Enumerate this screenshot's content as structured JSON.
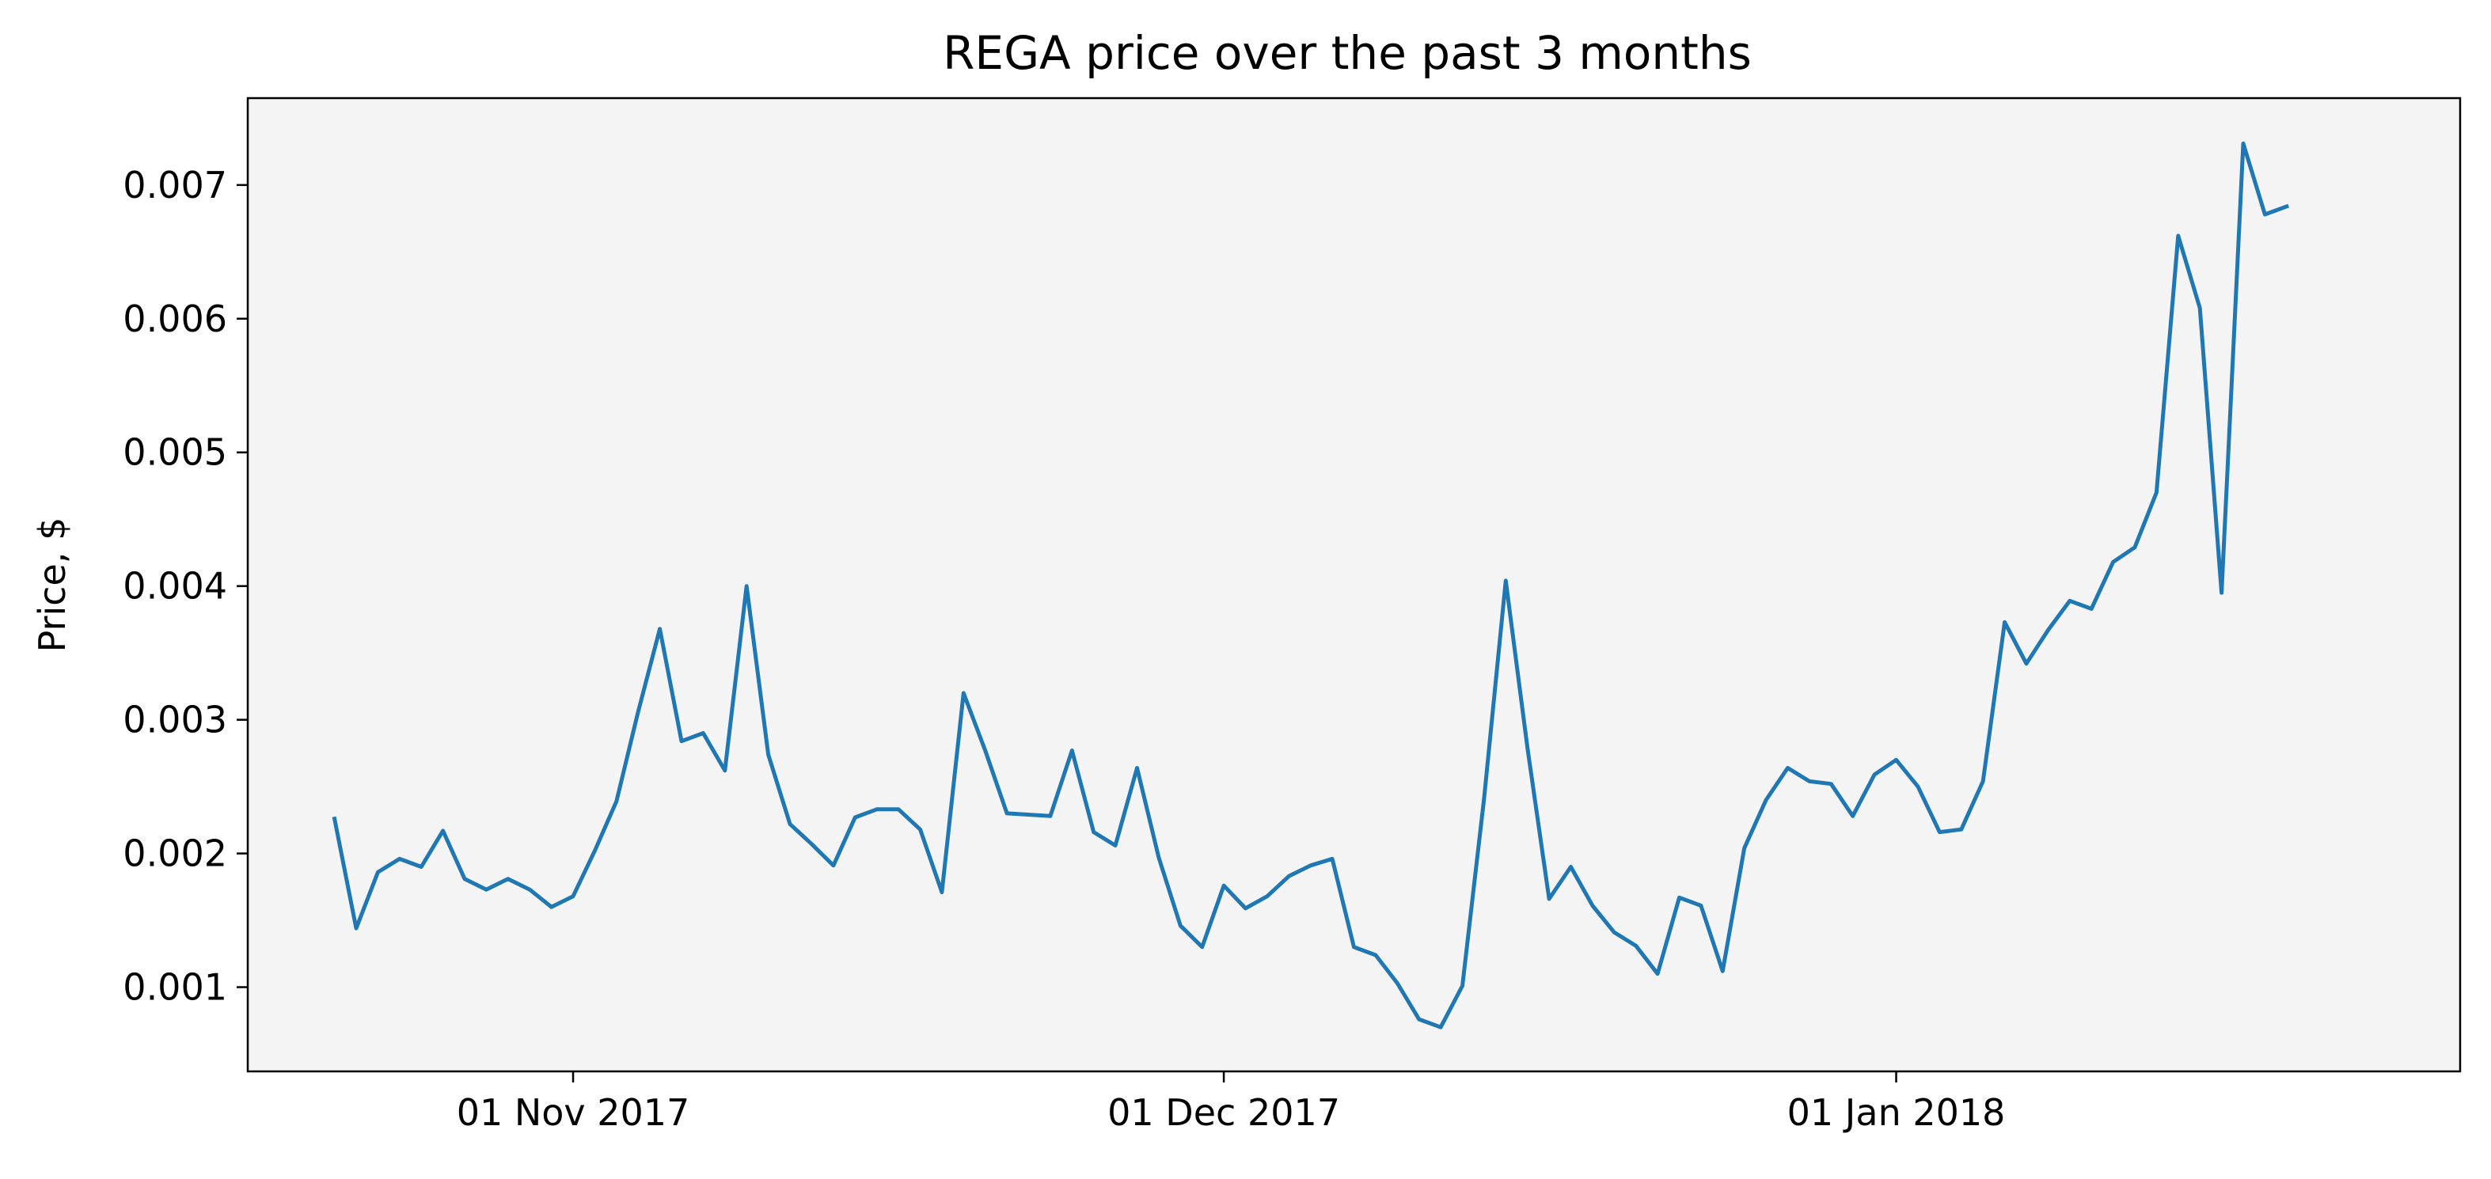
{
  "chart_data": {
    "type": "line",
    "title": "REGA price over the past 3 months",
    "xlabel": "",
    "ylabel": "Price, $",
    "x_tick_labels": [
      {
        "label": "01 Nov 2017",
        "date": "2017-11-01"
      },
      {
        "label": "01 Dec 2017",
        "date": "2017-12-01"
      },
      {
        "label": "01 Jan 2018",
        "date": "2018-01-01"
      }
    ],
    "y_ticks": [
      0.001,
      0.002,
      0.003,
      0.004,
      0.005,
      0.006,
      0.007
    ],
    "y_tick_labels": [
      "0.001",
      "0.002",
      "0.003",
      "0.004",
      "0.005",
      "0.006",
      "0.007"
    ],
    "xlim": [
      "2017-10-17",
      "2018-01-27"
    ],
    "ylim": [
      0.00037,
      0.00765
    ],
    "grid": false,
    "legend": "none",
    "colors": {
      "line": "#1f77b4",
      "plot_background": "#f4f4f4",
      "axes": "#000000"
    },
    "series": [
      {
        "points": [
          [
            "2017-10-21",
            0.00226
          ],
          [
            "2017-10-22",
            0.00144
          ],
          [
            "2017-10-23",
            0.00186
          ],
          [
            "2017-10-24",
            0.00196
          ],
          [
            "2017-10-25",
            0.0019
          ],
          [
            "2017-10-26",
            0.00217
          ],
          [
            "2017-10-27",
            0.00181
          ],
          [
            "2017-10-28",
            0.00173
          ],
          [
            "2017-10-29",
            0.00181
          ],
          [
            "2017-10-30",
            0.00173
          ],
          [
            "2017-10-31",
            0.0016
          ],
          [
            "2017-11-01",
            0.00168
          ],
          [
            "2017-11-02",
            0.00202
          ],
          [
            "2017-11-03",
            0.00239
          ],
          [
            "2017-11-04",
            0.00306
          ],
          [
            "2017-11-05",
            0.00368
          ],
          [
            "2017-11-06",
            0.00284
          ],
          [
            "2017-11-07",
            0.0029
          ],
          [
            "2017-11-08",
            0.00262
          ],
          [
            "2017-11-09",
            0.004
          ],
          [
            "2017-11-10",
            0.00274
          ],
          [
            "2017-11-11",
            0.00222
          ],
          [
            "2017-11-12",
            0.00207
          ],
          [
            "2017-11-13",
            0.00191
          ],
          [
            "2017-11-14",
            0.00227
          ],
          [
            "2017-11-15",
            0.00233
          ],
          [
            "2017-11-16",
            0.00233
          ],
          [
            "2017-11-17",
            0.00218
          ],
          [
            "2017-11-18",
            0.00171
          ],
          [
            "2017-11-19",
            0.0032
          ],
          [
            "2017-11-20",
            0.00277
          ],
          [
            "2017-11-21",
            0.0023
          ],
          [
            "2017-11-23",
            0.00228
          ],
          [
            "2017-11-24",
            0.00277
          ],
          [
            "2017-11-25",
            0.00216
          ],
          [
            "2017-11-26",
            0.00206
          ],
          [
            "2017-11-27",
            0.00264
          ],
          [
            "2017-11-28",
            0.00197
          ],
          [
            "2017-11-29",
            0.00146
          ],
          [
            "2017-11-30",
            0.0013
          ],
          [
            "2017-12-01",
            0.00176
          ],
          [
            "2017-12-02",
            0.00159
          ],
          [
            "2017-12-03",
            0.00168
          ],
          [
            "2017-12-04",
            0.00183
          ],
          [
            "2017-12-05",
            0.00191
          ],
          [
            "2017-12-06",
            0.00196
          ],
          [
            "2017-12-07",
            0.0013
          ],
          [
            "2017-12-08",
            0.00124
          ],
          [
            "2017-12-09",
            0.00103
          ],
          [
            "2017-12-10",
            0.00076
          ],
          [
            "2017-12-11",
            0.0007
          ],
          [
            "2017-12-12",
            0.00101
          ],
          [
            "2017-12-13",
            0.00241
          ],
          [
            "2017-12-14",
            0.00404
          ],
          [
            "2017-12-15",
            0.00279
          ],
          [
            "2017-12-16",
            0.00166
          ],
          [
            "2017-12-17",
            0.0019
          ],
          [
            "2017-12-18",
            0.00161
          ],
          [
            "2017-12-19",
            0.00141
          ],
          [
            "2017-12-20",
            0.00131
          ],
          [
            "2017-12-21",
            0.0011
          ],
          [
            "2017-12-22",
            0.00167
          ],
          [
            "2017-12-23",
            0.00161
          ],
          [
            "2017-12-24",
            0.00112
          ],
          [
            "2017-12-25",
            0.00204
          ],
          [
            "2017-12-26",
            0.0024
          ],
          [
            "2017-12-27",
            0.00264
          ],
          [
            "2017-12-28",
            0.00254
          ],
          [
            "2017-12-29",
            0.00252
          ],
          [
            "2017-12-30",
            0.00228
          ],
          [
            "2017-12-31",
            0.00259
          ],
          [
            "2018-01-01",
            0.0027
          ],
          [
            "2018-01-02",
            0.0025
          ],
          [
            "2018-01-03",
            0.00216
          ],
          [
            "2018-01-04",
            0.00218
          ],
          [
            "2018-01-05",
            0.00254
          ],
          [
            "2018-01-06",
            0.00373
          ],
          [
            "2018-01-07",
            0.00342
          ],
          [
            "2018-01-08",
            0.00367
          ],
          [
            "2018-01-09",
            0.00389
          ],
          [
            "2018-01-10",
            0.00383
          ],
          [
            "2018-01-11",
            0.00418
          ],
          [
            "2018-01-12",
            0.00429
          ],
          [
            "2018-01-13",
            0.0047
          ],
          [
            "2018-01-14",
            0.00662
          ],
          [
            "2018-01-15",
            0.00608
          ],
          [
            "2018-01-16",
            0.00395
          ],
          [
            "2018-01-17",
            0.00731
          ],
          [
            "2018-01-18",
            0.00678
          ],
          [
            "2018-01-19",
            0.00684
          ]
        ]
      }
    ]
  }
}
